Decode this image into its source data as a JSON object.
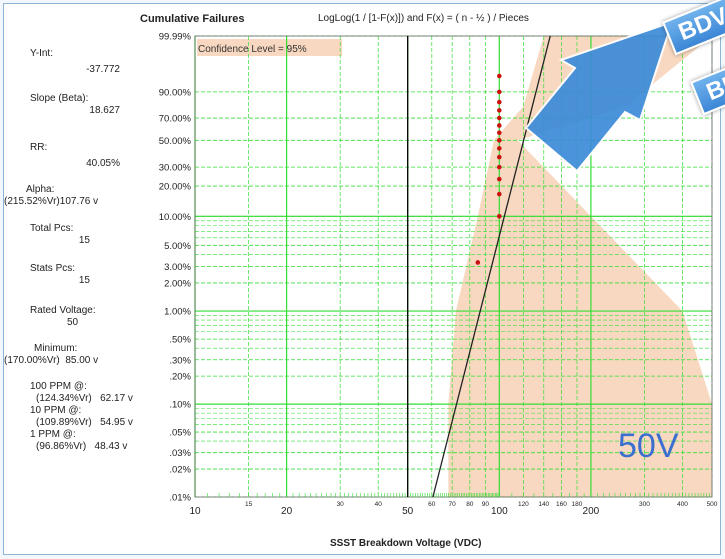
{
  "header": {
    "title": "Cumulative Failures",
    "formula": "LogLog(1 / [1-F(x)])  and  F(x) = ( n - ½ ) / Pieces"
  },
  "confidence_label": "Confidence Level = 95%",
  "big_label": "50V",
  "banners": [
    "BDV",
    "BD"
  ],
  "stats": {
    "y_int_label": "Y-Int:",
    "y_int": "-37.772",
    "slope_label": "Slope (Beta):",
    "slope": "18.627",
    "rr_label": "RR:",
    "rr": "40.05%",
    "alpha_label": "Alpha:",
    "alpha": "(215.52%Vr)107.76 v",
    "total_pos_label": "Total Pcs:",
    "total_pos": "15",
    "stats_pos_label": "Stats Pcs:",
    "stats_pos": "15",
    "rated_label": "Rated Voltage:",
    "rated": "50",
    "minimum_label": "Minimum:",
    "minimum": "(170.00%Vr)  85.00 v",
    "ppm100_label": "100 PPM @:",
    "ppm100": "(124.34%Vr)   62.17 v",
    "ppm10_label": "10 PPM @:",
    "ppm10": "(109.89%Vr)   54.95 v",
    "ppm1_label": "1 PPM @:",
    "ppm1": "(96.86%Vr)   48.43 v"
  },
  "colors": {
    "grid": "#33dd33",
    "band": "#f8d8c0",
    "fit_line": "#222222",
    "points": "#cc1111",
    "rated_line": "#000000",
    "arrow": "#3c8ad8"
  },
  "chart_data": {
    "type": "scatter",
    "title": "Cumulative Failures",
    "xlabel": "SSST Breakdown Voltage (VDC)",
    "ylabel": "",
    "x_scale": "log",
    "y_scale": "weibull",
    "xlim": [
      10,
      500
    ],
    "ylim": [
      0.01,
      99.99
    ],
    "x_major_ticks": [
      {
        "value": 10,
        "label": "10"
      },
      {
        "value": 20,
        "label": "20"
      },
      {
        "value": 50,
        "label": "50"
      },
      {
        "value": 100,
        "label": "100"
      },
      {
        "value": 200,
        "label": "200"
      }
    ],
    "x_minor_ticks": [
      {
        "value": 15,
        "label": "15"
      },
      {
        "value": 30,
        "label": "30"
      },
      {
        "value": 40,
        "label": "40"
      },
      {
        "value": 60,
        "label": "60"
      },
      {
        "value": 70,
        "label": "70"
      },
      {
        "value": 80,
        "label": "80"
      },
      {
        "value": 90,
        "label": "90"
      },
      {
        "value": 120,
        "label": "120"
      },
      {
        "value": 140,
        "label": "140"
      },
      {
        "value": 160,
        "label": "160"
      },
      {
        "value": 180,
        "label": "180"
      },
      {
        "value": 300,
        "label": "300"
      },
      {
        "value": 400,
        "label": "400"
      },
      {
        "value": 500,
        "label": "500"
      }
    ],
    "y_ticks": [
      {
        "value": 99.99,
        "label": "99.99%"
      },
      {
        "value": 90,
        "label": "90.00%"
      },
      {
        "value": 70,
        "label": "70.00%"
      },
      {
        "value": 50,
        "label": "50.00%"
      },
      {
        "value": 30,
        "label": "30.00%"
      },
      {
        "value": 20,
        "label": "20.00%"
      },
      {
        "value": 10,
        "label": "10.00%"
      },
      {
        "value": 5,
        "label": "5.00%"
      },
      {
        "value": 3,
        "label": "3.00%"
      },
      {
        "value": 2,
        "label": "2.00%"
      },
      {
        "value": 1,
        "label": "1.00%"
      },
      {
        "value": 0.5,
        "label": ".50%"
      },
      {
        "value": 0.3,
        "label": ".30%"
      },
      {
        "value": 0.2,
        "label": ".20%"
      },
      {
        "value": 0.1,
        "label": ".10%"
      },
      {
        "value": 0.05,
        "label": ".05%"
      },
      {
        "value": 0.03,
        "label": ".03%"
      },
      {
        "value": 0.02,
        "label": ".02%"
      },
      {
        "value": 0.01,
        "label": ".01%"
      }
    ],
    "reference_line_x": 50,
    "fit_line": [
      {
        "x": 60.5,
        "y": 0.01
      },
      {
        "x": 147,
        "y": 99.99
      }
    ],
    "points": [
      {
        "x": 85,
        "y": 3.3
      },
      {
        "x": 100,
        "y": 10
      },
      {
        "x": 100,
        "y": 16.7
      },
      {
        "x": 100,
        "y": 23.3
      },
      {
        "x": 100,
        "y": 30
      },
      {
        "x": 100,
        "y": 36.7
      },
      {
        "x": 100,
        "y": 43.3
      },
      {
        "x": 100,
        "y": 50
      },
      {
        "x": 100,
        "y": 56.7
      },
      {
        "x": 100,
        "y": 63.3
      },
      {
        "x": 100,
        "y": 70
      },
      {
        "x": 100,
        "y": 76.7
      },
      {
        "x": 100,
        "y": 83.3
      },
      {
        "x": 100,
        "y": 90
      },
      {
        "x": 100,
        "y": 96.7
      }
    ],
    "confidence_band": [
      {
        "y": 0.01,
        "lower": 68,
        "upper": 500
      },
      {
        "y": 0.1,
        "lower": 68,
        "upper": 500
      },
      {
        "y": 1,
        "lower": 72,
        "upper": 400
      },
      {
        "y": 10,
        "lower": 85,
        "upper": 200
      },
      {
        "y": 50,
        "lower": 96,
        "upper": 115
      },
      {
        "y": 80,
        "lower": 120,
        "upper": 260
      },
      {
        "y": 99.99,
        "lower": 140,
        "upper": 500
      }
    ]
  }
}
